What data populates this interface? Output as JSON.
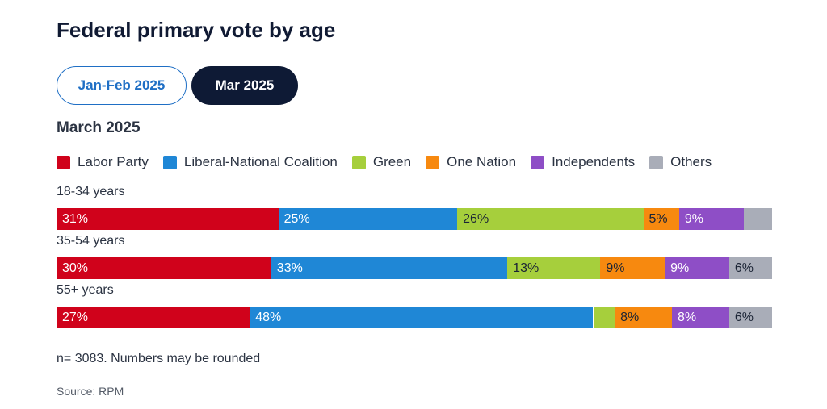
{
  "tabs": [
    "Jan-Feb 2025",
    "Mar 2025"
  ],
  "chart_data": {
    "type": "stacked-bar",
    "orientation": "horizontal",
    "title": "Federal primary vote by age",
    "subtitle": "March 2025",
    "categories": [
      "18-34 years",
      "35-54 years",
      "55+ years"
    ],
    "series": [
      {
        "name": "Labor Party",
        "color": "#d0021b",
        "values": [
          31,
          30,
          27
        ],
        "value_labels": [
          "31%",
          "30%",
          "27%"
        ]
      },
      {
        "name": "Liberal-National Coalition",
        "color": "#1f87d6",
        "values": [
          25,
          33,
          48
        ],
        "value_labels": [
          "25%",
          "33%",
          "48%"
        ]
      },
      {
        "name": "Green",
        "color": "#a6cf3c",
        "values": [
          26,
          13,
          3
        ],
        "value_labels": [
          "26%",
          "13%",
          null
        ]
      },
      {
        "name": "One Nation",
        "color": "#f7890f",
        "values": [
          5,
          9,
          8
        ],
        "value_labels": [
          "5%",
          "9%",
          "8%"
        ]
      },
      {
        "name": "Independents",
        "color": "#8e4ec6",
        "values": [
          9,
          9,
          8
        ],
        "value_labels": [
          "9%",
          "9%",
          "8%"
        ]
      },
      {
        "name": "Others",
        "color": "#a9adb8",
        "values": [
          4,
          6,
          6
        ],
        "value_labels": [
          null,
          "6%",
          "6%"
        ]
      }
    ],
    "note": "n= 3083. Numbers may be rounded",
    "source": "Source: RPM"
  }
}
